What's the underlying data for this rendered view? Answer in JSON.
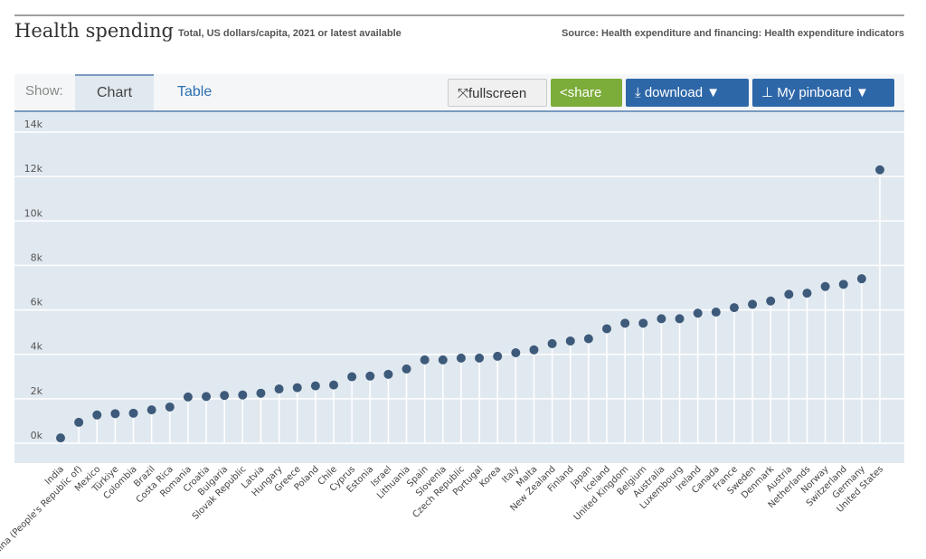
{
  "header": {
    "title": "Health spending",
    "subtitle": "Total, US dollars/capita, 2021 or latest available",
    "source": "Source: Health expenditure and financing: Health expenditure indicators"
  },
  "toolbar": {
    "show_label": "Show:",
    "tabs": [
      "Chart",
      "Table"
    ],
    "active_tab": "Chart",
    "fullscreen": "fullscreen",
    "share": "share",
    "download": "download ▼",
    "pinboard": "My pinboard ▼",
    "colors": {
      "share": "#7cac3a",
      "download": "#2e67a8"
    }
  },
  "icons": {
    "fullscreen": "expand-arrows-icon",
    "share": "share-icon",
    "download": "download-icon",
    "pinboard": "pin-icon"
  },
  "chart_data": {
    "type": "lollipop",
    "ylim": [
      0,
      14000
    ],
    "yticks": [
      "0k",
      "2k",
      "4k",
      "6k",
      "8k",
      "10k",
      "12k",
      "14k"
    ],
    "grid": true,
    "color": "#3d5a7a",
    "categories": [
      "India",
      "China (People's Republic of)",
      "Mexico",
      "Türkiye",
      "Colombia",
      "Brazil",
      "Costa Rica",
      "Romania",
      "Croatia",
      "Bulgaria",
      "Slovak Republic",
      "Latvia",
      "Hungary",
      "Greece",
      "Poland",
      "Chile",
      "Cyprus",
      "Estonia",
      "Israel",
      "Lithuania",
      "Spain",
      "Slovenia",
      "Czech Republic",
      "Portugal",
      "Korea",
      "Italy",
      "Malta",
      "New Zealand",
      "Finland",
      "Japan",
      "Iceland",
      "United Kingdom",
      "Belgium",
      "Australia",
      "Luxembourg",
      "Ireland",
      "Canada",
      "France",
      "Sweden",
      "Denmark",
      "Austria",
      "Netherlands",
      "Norway",
      "Switzerland",
      "Germany",
      "United States"
    ],
    "values": [
      240,
      940,
      1270,
      1330,
      1350,
      1500,
      1630,
      2080,
      2100,
      2150,
      2170,
      2250,
      2440,
      2500,
      2580,
      2620,
      2990,
      3020,
      3100,
      3340,
      3750,
      3750,
      3830,
      3830,
      3910,
      4070,
      4200,
      4480,
      4600,
      4700,
      5150,
      5400,
      5400,
      5600,
      5600,
      5850,
      5900,
      6100,
      6250,
      6400,
      6700,
      6750,
      7050,
      7150,
      7400,
      12300
    ]
  }
}
